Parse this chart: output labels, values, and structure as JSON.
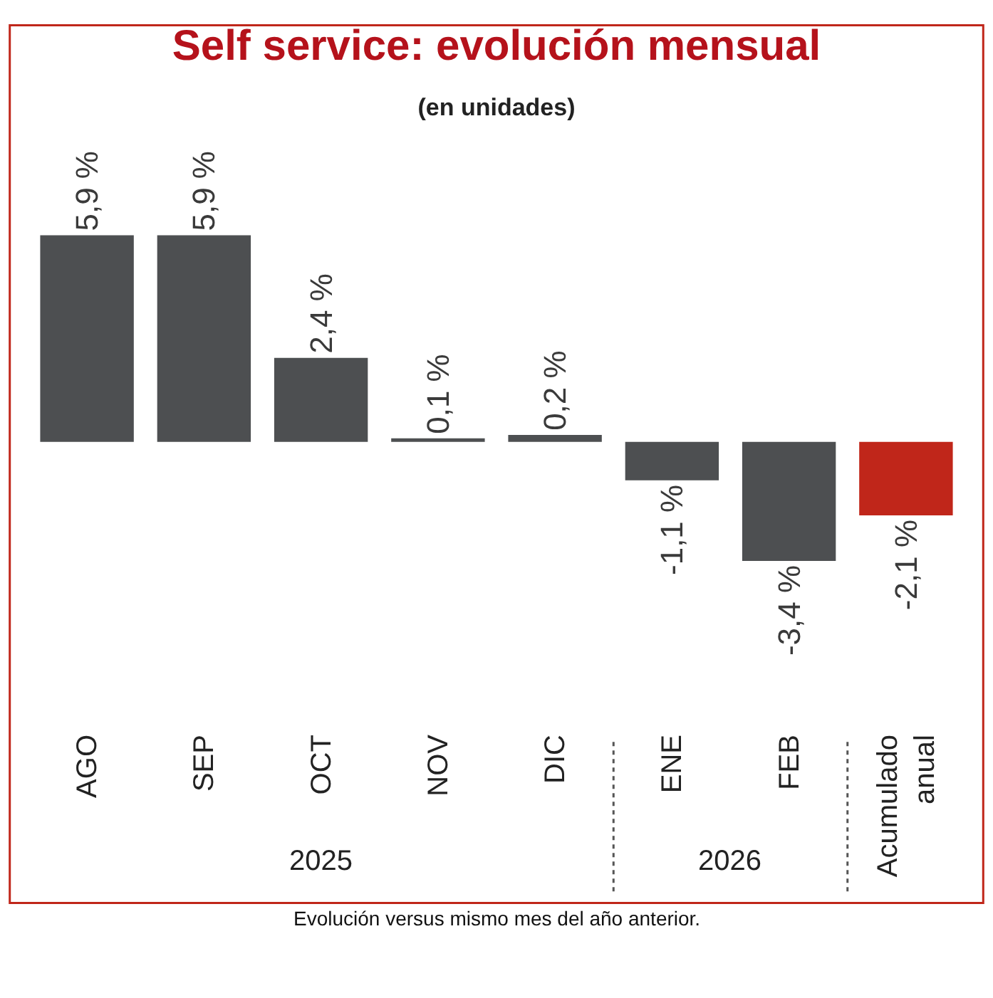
{
  "chart_data": {
    "type": "bar",
    "title": "Self service: evolución mensual",
    "subtitle": "(en unidades)",
    "categories": [
      "AGO",
      "SEP",
      "OCT",
      "NOV",
      "DIC",
      "ENE",
      "FEB",
      "Acumulado anual"
    ],
    "values": [
      5.9,
      5.9,
      2.4,
      0.1,
      0.2,
      -1.1,
      -3.4,
      -2.1
    ],
    "colors": [
      "#4d4f51",
      "#4d4f51",
      "#4d4f51",
      "#4d4f51",
      "#4d4f51",
      "#4d4f51",
      "#4d4f51",
      "#c0261a"
    ],
    "value_labels": [
      "5,9 %",
      "5,9 %",
      "2,4 %",
      "0,1 %",
      "0,2 %",
      "-1,1 %",
      "-3,4 %",
      "-2,1 %"
    ],
    "annotations": [
      "2025",
      "2026",
      "Evolución versus mismo mes del año anterior."
    ],
    "legend": false
  }
}
